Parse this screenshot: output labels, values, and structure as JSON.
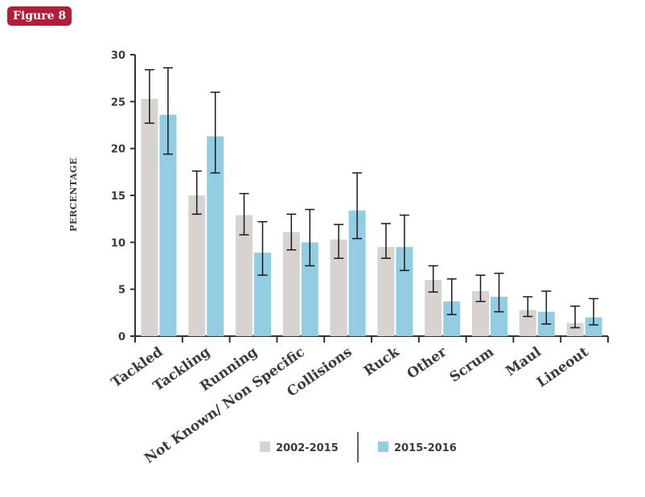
{
  "figure_label": "Figure 8",
  "colors": {
    "badge": "#b01e3c",
    "axis": "#333333",
    "errorbar": "#1a1a1a"
  },
  "chart_data": {
    "type": "bar",
    "title": "",
    "xlabel": "",
    "ylabel": "PERCENTAGE",
    "ylim": [
      0,
      30
    ],
    "yticks": [
      0,
      5,
      10,
      15,
      20,
      25,
      30
    ],
    "grid": false,
    "legend_position": "bottom",
    "categories": [
      "Tackled",
      "Tackling",
      "Running",
      "Not Known/ Non Specific",
      "Collisions",
      "Ruck",
      "Other",
      "Scrum",
      "Maul",
      "Lineout"
    ],
    "series": [
      {
        "name": "2002-2015",
        "color": "#d6d3d0",
        "values": [
          25.3,
          15.0,
          12.9,
          11.1,
          10.3,
          9.5,
          6.0,
          4.8,
          2.8,
          1.4
        ],
        "error_low": [
          22.7,
          13.0,
          10.8,
          9.2,
          8.3,
          8.3,
          4.7,
          3.7,
          2.1,
          0.9
        ],
        "error_high": [
          28.4,
          17.6,
          15.2,
          13.0,
          11.9,
          12.0,
          7.5,
          6.5,
          4.2,
          3.2
        ]
      },
      {
        "name": "2015-2016",
        "color": "#93cde4",
        "values": [
          23.6,
          21.3,
          8.9,
          10.0,
          13.4,
          9.5,
          3.7,
          4.2,
          2.6,
          2.0
        ],
        "error_low": [
          19.4,
          17.4,
          6.5,
          7.5,
          10.4,
          7.0,
          2.3,
          2.6,
          1.3,
          1.2
        ],
        "error_high": [
          28.6,
          26.0,
          12.2,
          13.5,
          17.4,
          12.9,
          6.1,
          6.7,
          4.8,
          4.0
        ]
      }
    ]
  }
}
